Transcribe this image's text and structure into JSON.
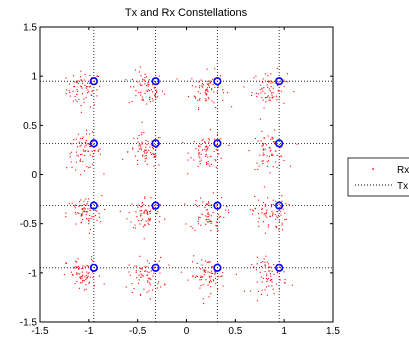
{
  "chart_data": {
    "type": "scatter",
    "title": "Tx and Rx Constellations",
    "xlabel": "",
    "ylabel": "",
    "xlim": [
      -1.5,
      1.5
    ],
    "ylim": [
      -1.5,
      1.5
    ],
    "xticks": [
      -1.5,
      -1,
      -0.5,
      0,
      0.5,
      1,
      1.5
    ],
    "yticks": [
      -1.5,
      -1,
      -0.5,
      0,
      0.5,
      1,
      1.5
    ],
    "xtick_labels": [
      "-1.5",
      "-1",
      "-0.5",
      "0",
      "0.5",
      "1",
      "1.5"
    ],
    "ytick_labels": [
      "-1.5",
      "-1",
      "-0.5",
      "0",
      "0.5",
      "1",
      "1.5"
    ],
    "grid_lines": [
      -0.9487,
      -0.3162,
      0.3162,
      0.9487
    ],
    "grid": "dotted at constellation levels",
    "legend_position": "right",
    "series": [
      {
        "name": "Rx",
        "marker": "dot",
        "color": "#ff0000",
        "cluster_centers": [
          [
            -0.9487,
            0.9487
          ],
          [
            -0.3162,
            0.9487
          ],
          [
            0.3162,
            0.9487
          ],
          [
            0.9487,
            0.9487
          ],
          [
            -0.9487,
            0.3162
          ],
          [
            -0.3162,
            0.3162
          ],
          [
            0.3162,
            0.3162
          ],
          [
            0.9487,
            0.3162
          ],
          [
            -0.9487,
            -0.3162
          ],
          [
            -0.3162,
            -0.3162
          ],
          [
            0.3162,
            -0.3162
          ],
          [
            0.9487,
            -0.3162
          ],
          [
            -0.9487,
            -0.9487
          ],
          [
            -0.3162,
            -0.9487
          ],
          [
            0.3162,
            -0.9487
          ],
          [
            0.9487,
            -0.9487
          ]
        ],
        "points_per_cluster": 70,
        "spread": 0.12,
        "cluster_offset": [
          -0.1,
          -0.08
        ]
      },
      {
        "name": "Tx",
        "marker": "circle",
        "color": "#0000ff",
        "points": [
          [
            -0.9487,
            0.9487
          ],
          [
            -0.3162,
            0.9487
          ],
          [
            0.3162,
            0.9487
          ],
          [
            0.9487,
            0.9487
          ],
          [
            -0.9487,
            0.3162
          ],
          [
            -0.3162,
            0.3162
          ],
          [
            0.3162,
            0.3162
          ],
          [
            0.9487,
            0.3162
          ],
          [
            -0.9487,
            -0.3162
          ],
          [
            -0.3162,
            -0.3162
          ],
          [
            0.3162,
            -0.3162
          ],
          [
            0.9487,
            -0.3162
          ],
          [
            -0.9487,
            -0.9487
          ],
          [
            -0.3162,
            -0.9487
          ],
          [
            0.3162,
            -0.9487
          ],
          [
            0.9487,
            -0.9487
          ]
        ]
      }
    ],
    "legend": [
      "Rx",
      "Tx"
    ]
  }
}
